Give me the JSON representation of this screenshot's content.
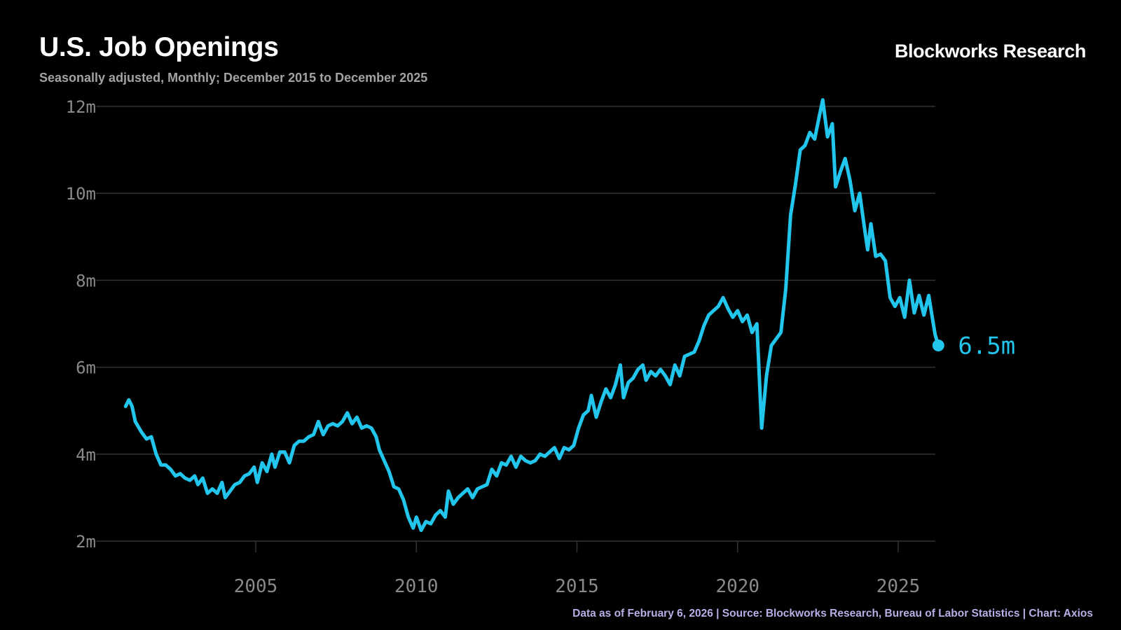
{
  "header": {
    "title": "U.S. Job Openings",
    "subtitle": "Seasonally adjusted, Monthly; December 2015 to December 2025",
    "brand": "Blockworks Research"
  },
  "footer": {
    "note": "Data as of February 6, 2026 | Source:  Blockworks Research, Bureau of Labor Statistics | Chart: Axios"
  },
  "colors": {
    "line": "#22c5ec",
    "grid": "#333333",
    "background": "#000000"
  },
  "chart_data": {
    "type": "line",
    "title": "U.S. Job Openings",
    "subtitle": "Seasonally adjusted, Monthly; December 2015 to December 2025",
    "xlabel": "",
    "ylabel": "",
    "xlim": [
      2001,
      2026
    ],
    "ylim": [
      2,
      12
    ],
    "xticks": [
      2005,
      2010,
      2015,
      2020,
      2025
    ],
    "xtick_labels": [
      "2005",
      "2010",
      "2015",
      "2020",
      "2025"
    ],
    "yticks": [
      2,
      4,
      6,
      8,
      10,
      12
    ],
    "ytick_labels": [
      "2m",
      "4m",
      "6m",
      "8m",
      "10m",
      "12m"
    ],
    "grid": true,
    "end_label": "6.5m",
    "series": [
      {
        "values": [
          [
            2000.95,
            5.1
          ],
          [
            2001.05,
            5.25
          ],
          [
            2001.15,
            5.1
          ],
          [
            2001.25,
            4.75
          ],
          [
            2001.45,
            4.5
          ],
          [
            2001.6,
            4.35
          ],
          [
            2001.75,
            4.4
          ],
          [
            2001.9,
            4.0
          ],
          [
            2002.05,
            3.75
          ],
          [
            2002.2,
            3.75
          ],
          [
            2002.35,
            3.65
          ],
          [
            2002.5,
            3.5
          ],
          [
            2002.65,
            3.55
          ],
          [
            2002.8,
            3.45
          ],
          [
            2002.95,
            3.4
          ],
          [
            2003.1,
            3.5
          ],
          [
            2003.2,
            3.3
          ],
          [
            2003.35,
            3.45
          ],
          [
            2003.5,
            3.1
          ],
          [
            2003.65,
            3.2
          ],
          [
            2003.8,
            3.1
          ],
          [
            2003.95,
            3.35
          ],
          [
            2004.05,
            3.0
          ],
          [
            2004.2,
            3.15
          ],
          [
            2004.35,
            3.3
          ],
          [
            2004.5,
            3.35
          ],
          [
            2004.65,
            3.5
          ],
          [
            2004.8,
            3.55
          ],
          [
            2004.95,
            3.7
          ],
          [
            2005.05,
            3.35
          ],
          [
            2005.2,
            3.8
          ],
          [
            2005.35,
            3.6
          ],
          [
            2005.5,
            4.0
          ],
          [
            2005.6,
            3.7
          ],
          [
            2005.75,
            4.05
          ],
          [
            2005.9,
            4.05
          ],
          [
            2006.05,
            3.8
          ],
          [
            2006.2,
            4.2
          ],
          [
            2006.35,
            4.3
          ],
          [
            2006.5,
            4.3
          ],
          [
            2006.65,
            4.4
          ],
          [
            2006.8,
            4.45
          ],
          [
            2006.95,
            4.75
          ],
          [
            2007.1,
            4.45
          ],
          [
            2007.25,
            4.65
          ],
          [
            2007.4,
            4.7
          ],
          [
            2007.55,
            4.65
          ],
          [
            2007.7,
            4.75
          ],
          [
            2007.85,
            4.95
          ],
          [
            2008.0,
            4.7
          ],
          [
            2008.15,
            4.85
          ],
          [
            2008.3,
            4.6
          ],
          [
            2008.45,
            4.65
          ],
          [
            2008.6,
            4.6
          ],
          [
            2008.75,
            4.4
          ],
          [
            2008.85,
            4.1
          ],
          [
            2009.0,
            3.85
          ],
          [
            2009.15,
            3.6
          ],
          [
            2009.3,
            3.25
          ],
          [
            2009.45,
            3.2
          ],
          [
            2009.6,
            2.95
          ],
          [
            2009.75,
            2.55
          ],
          [
            2009.9,
            2.3
          ],
          [
            2010.0,
            2.55
          ],
          [
            2010.15,
            2.25
          ],
          [
            2010.3,
            2.45
          ],
          [
            2010.45,
            2.4
          ],
          [
            2010.6,
            2.6
          ],
          [
            2010.75,
            2.7
          ],
          [
            2010.9,
            2.55
          ],
          [
            2011.0,
            3.15
          ],
          [
            2011.15,
            2.85
          ],
          [
            2011.3,
            3.0
          ],
          [
            2011.45,
            3.1
          ],
          [
            2011.6,
            3.2
          ],
          [
            2011.75,
            3.0
          ],
          [
            2011.9,
            3.2
          ],
          [
            2012.05,
            3.25
          ],
          [
            2012.2,
            3.3
          ],
          [
            2012.35,
            3.65
          ],
          [
            2012.5,
            3.5
          ],
          [
            2012.65,
            3.8
          ],
          [
            2012.8,
            3.75
          ],
          [
            2012.95,
            3.95
          ],
          [
            2013.1,
            3.7
          ],
          [
            2013.25,
            3.95
          ],
          [
            2013.4,
            3.85
          ],
          [
            2013.55,
            3.8
          ],
          [
            2013.7,
            3.85
          ],
          [
            2013.85,
            4.0
          ],
          [
            2014.0,
            3.95
          ],
          [
            2014.15,
            4.05
          ],
          [
            2014.3,
            4.15
          ],
          [
            2014.45,
            3.9
          ],
          [
            2014.6,
            4.15
          ],
          [
            2014.75,
            4.1
          ],
          [
            2014.9,
            4.2
          ],
          [
            2015.05,
            4.6
          ],
          [
            2015.2,
            4.9
          ],
          [
            2015.35,
            5.0
          ],
          [
            2015.45,
            5.35
          ],
          [
            2015.6,
            4.85
          ],
          [
            2015.75,
            5.2
          ],
          [
            2015.9,
            5.5
          ],
          [
            2016.05,
            5.3
          ],
          [
            2016.2,
            5.6
          ],
          [
            2016.35,
            6.05
          ],
          [
            2016.45,
            5.3
          ],
          [
            2016.6,
            5.65
          ],
          [
            2016.75,
            5.75
          ],
          [
            2016.9,
            5.95
          ],
          [
            2017.05,
            6.05
          ],
          [
            2017.15,
            5.7
          ],
          [
            2017.3,
            5.9
          ],
          [
            2017.45,
            5.8
          ],
          [
            2017.6,
            5.95
          ],
          [
            2017.75,
            5.8
          ],
          [
            2017.9,
            5.6
          ],
          [
            2018.05,
            6.05
          ],
          [
            2018.2,
            5.8
          ],
          [
            2018.35,
            6.25
          ],
          [
            2018.5,
            6.3
          ],
          [
            2018.65,
            6.35
          ],
          [
            2018.8,
            6.6
          ],
          [
            2018.95,
            6.95
          ],
          [
            2019.1,
            7.2
          ],
          [
            2019.25,
            7.3
          ],
          [
            2019.4,
            7.4
          ],
          [
            2019.55,
            7.6
          ],
          [
            2019.7,
            7.35
          ],
          [
            2019.85,
            7.15
          ],
          [
            2020.0,
            7.3
          ],
          [
            2020.15,
            7.05
          ],
          [
            2020.3,
            7.2
          ],
          [
            2020.45,
            6.8
          ],
          [
            2020.6,
            7.0
          ],
          [
            2020.75,
            4.6
          ],
          [
            2020.9,
            5.8
          ],
          [
            2021.05,
            6.5
          ],
          [
            2021.2,
            6.65
          ],
          [
            2021.35,
            6.8
          ],
          [
            2021.5,
            7.8
          ],
          [
            2021.65,
            9.5
          ],
          [
            2021.8,
            10.2
          ],
          [
            2021.95,
            11.0
          ],
          [
            2022.1,
            11.1
          ],
          [
            2022.25,
            11.4
          ],
          [
            2022.4,
            11.25
          ],
          [
            2022.55,
            11.8
          ],
          [
            2022.65,
            12.15
          ],
          [
            2022.8,
            11.3
          ],
          [
            2022.95,
            11.6
          ],
          [
            2023.05,
            10.15
          ],
          [
            2023.2,
            10.5
          ],
          [
            2023.35,
            10.8
          ],
          [
            2023.5,
            10.3
          ],
          [
            2023.65,
            9.6
          ],
          [
            2023.8,
            10.0
          ],
          [
            2023.95,
            9.2
          ],
          [
            2024.05,
            8.7
          ],
          [
            2024.15,
            9.3
          ],
          [
            2024.3,
            8.55
          ],
          [
            2024.45,
            8.6
          ],
          [
            2024.6,
            8.45
          ],
          [
            2024.75,
            7.6
          ],
          [
            2024.9,
            7.4
          ],
          [
            2025.05,
            7.6
          ],
          [
            2025.2,
            7.15
          ],
          [
            2025.35,
            8.0
          ],
          [
            2025.5,
            7.25
          ],
          [
            2025.65,
            7.65
          ],
          [
            2025.8,
            7.2
          ],
          [
            2025.95,
            7.65
          ],
          [
            2026.05,
            7.2
          ],
          [
            2026.15,
            6.75
          ],
          [
            2026.25,
            6.5
          ]
        ]
      }
    ]
  }
}
